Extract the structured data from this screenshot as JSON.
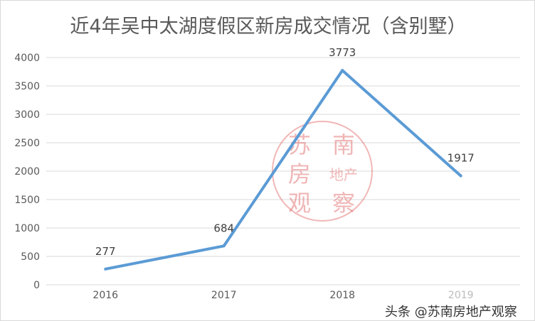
{
  "chart_data": {
    "type": "line",
    "title": "近4年吴中太湖度假区新房成交情况（含别墅）",
    "categories": [
      "2016",
      "2017",
      "2018",
      "2019"
    ],
    "series": [
      {
        "values": [
          277,
          684,
          3773,
          1917
        ],
        "color": "#5b9bd5"
      }
    ],
    "data_labels": [
      "277",
      "684",
      "3773",
      "1917"
    ],
    "ylim": [
      0,
      4000
    ],
    "yticks": [
      "0",
      "500",
      "1000",
      "1500",
      "2000",
      "2500",
      "3000",
      "3500",
      "4000"
    ],
    "grid": true,
    "legend": "none"
  },
  "watermark": {
    "stamp_text": "苏南房地产观察",
    "color": "#e06060"
  },
  "credit": "头条 @苏南房地产观察"
}
